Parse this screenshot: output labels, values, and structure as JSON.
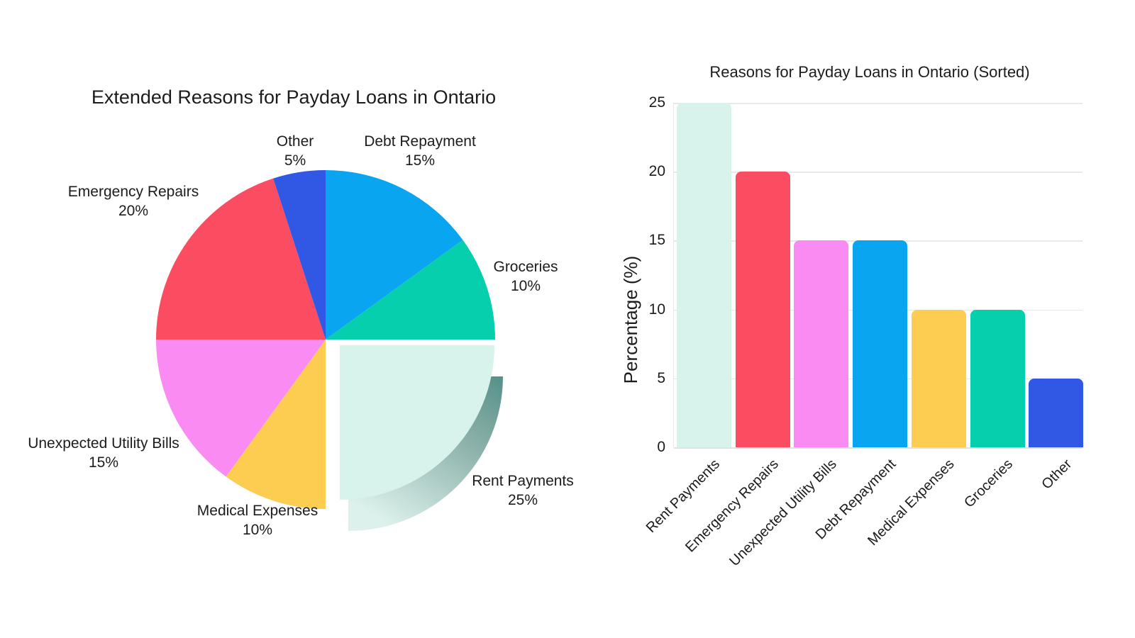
{
  "chart_data": [
    {
      "type": "pie",
      "title": "Extended Reasons for Payday Loans in Ontario",
      "unit": "%",
      "start_angle": "top-clockwise",
      "slices": [
        {
          "label": "Debt Repayment",
          "value": 15,
          "color": "#0aa5f0",
          "exploded": false
        },
        {
          "label": "Groceries",
          "value": 10,
          "color": "#05cfad",
          "exploded": false
        },
        {
          "label": "Rent Payments",
          "value": 25,
          "color": "#d8f2ec",
          "exploded": true
        },
        {
          "label": "Medical Expenses",
          "value": 10,
          "color": "#fdcd52",
          "exploded": false
        },
        {
          "label": "Unexpected Utility Bills",
          "value": 15,
          "color": "#f98bf2",
          "exploded": false
        },
        {
          "label": "Emergency Repairs",
          "value": 20,
          "color": "#fa4d61",
          "exploded": false
        },
        {
          "label": "Other",
          "value": 5,
          "color": "#3058e4",
          "exploded": false
        }
      ],
      "shadow_colors": [
        "#4f8c85",
        "#8fb3ac",
        "#dcf1ec"
      ]
    },
    {
      "type": "bar",
      "title": "Reasons for Payday Loans in Ontario (Sorted)",
      "ylabel": "Percentage (%)",
      "categories": [
        "Rent Payments",
        "Emergency Repairs",
        "Unexpected Utility Bills",
        "Debt Repayment",
        "Medical Expenses",
        "Groceries",
        "Other"
      ],
      "values": [
        25,
        20,
        15,
        15,
        10,
        10,
        5
      ],
      "colors": [
        "#d8f2ec",
        "#fa4d61",
        "#f98bf2",
        "#0aa5f0",
        "#fdcd52",
        "#05cfad",
        "#3058e4"
      ],
      "yticks": [
        0,
        5,
        10,
        15,
        20,
        25
      ],
      "ylim": [
        0,
        25
      ],
      "grid": "horizontal",
      "legend": "none"
    }
  ]
}
